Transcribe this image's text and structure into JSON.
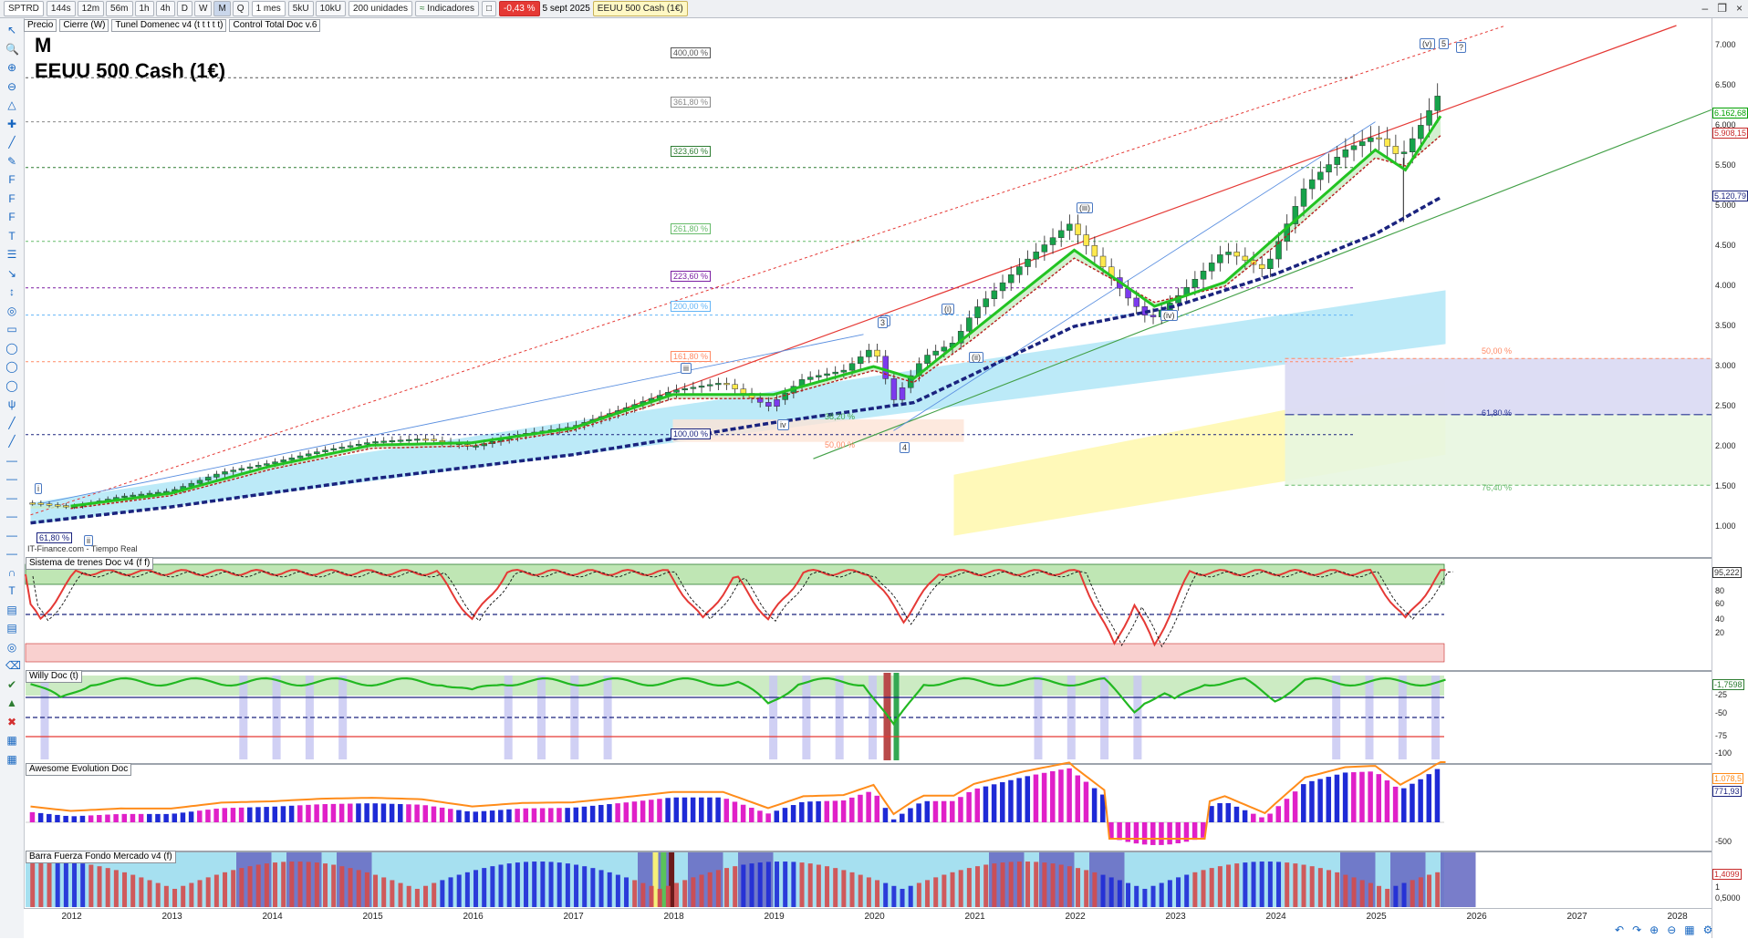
{
  "toolbar": {
    "symbol": "SPTRD",
    "buttons": [
      "144s",
      "12m",
      "56m",
      "1h",
      "4h",
      "D",
      "W",
      "M",
      "Q"
    ],
    "active_button": "M",
    "period": "1 mes",
    "units": [
      "5kU",
      "10kU"
    ],
    "bars": "200 unidades",
    "indicators": "Indicadores",
    "change": "-0,43 %",
    "date": "5 sept 2025",
    "instrument": "EEUU 500 Cash (1€)"
  },
  "legend": {
    "items": [
      "Precio",
      "Cierre (W)",
      "Tunel Domenec v4 (t t t t t)",
      "Control Total Doc v.6"
    ]
  },
  "header": {
    "timeframe": "M",
    "title": "EEUU 500 Cash (1€)",
    "source": "IT-Finance.com - Tiempo Real"
  },
  "fib_labels": [
    {
      "text": "400,00 %",
      "color": "#555555"
    },
    {
      "text": "361,80 %",
      "color": "#888888"
    },
    {
      "text": "323,60 %",
      "color": "#2e7d32"
    },
    {
      "text": "261,80 %",
      "color": "#66bb6a"
    },
    {
      "text": "223,60 %",
      "color": "#7b1fa2"
    },
    {
      "text": "200,00 %",
      "color": "#64b5f6"
    },
    {
      "text": "161,80 %",
      "color": "#ff8a65"
    },
    {
      "text": "100,00 %",
      "color": "#1a237e"
    },
    {
      "text": "61,80 %",
      "color": "#1a237e"
    },
    {
      "text": "38,20 %",
      "color": "#43a047"
    },
    {
      "text": "50,00 %",
      "color": "#ff8a65"
    },
    {
      "text": "50,00 %",
      "color": "#ff8a65"
    },
    {
      "text": "61,80 %",
      "color": "#283593"
    },
    {
      "text": "76,40 %",
      "color": "#66bb6a"
    }
  ],
  "waves": [
    "i",
    "ii",
    "iii",
    "iv",
    "v",
    "(i)",
    "(ii)",
    "(iii)",
    "(iv)",
    "(v)",
    "3",
    "4",
    "5",
    "?"
  ],
  "panels": [
    {
      "title": "Sistema de trenes Doc v4 (f f)",
      "ticks": [
        "80",
        "60",
        "40",
        "20"
      ],
      "value": "95,222"
    },
    {
      "title": "Willy Doc (t)",
      "ticks": [
        "-25",
        "-50",
        "-75",
        "-100"
      ],
      "value": "-1,7598"
    },
    {
      "title": "Awesome Evolution Doc",
      "ticks": [
        "-500"
      ],
      "values": [
        "1.078,5",
        "771,93"
      ]
    },
    {
      "title": "Barra Fuerza Fondo Mercado v4 (f)",
      "ticks": [
        "1",
        "0,5000"
      ],
      "value": "1,4099"
    }
  ],
  "chart_data": {
    "type": "candlestick",
    "title": "EEUU 500 Cash (1€)",
    "timeframe": "M",
    "xlabel": "",
    "ylabel": "",
    "x_ticks": [
      "2012",
      "2013",
      "2014",
      "2015",
      "2016",
      "2017",
      "2018",
      "2019",
      "2020",
      "2021",
      "2022",
      "2023",
      "2024",
      "2025",
      "2026",
      "2027",
      "2028"
    ],
    "y_ticks": [
      "7.000",
      "6.500",
      "6.000",
      "5.500",
      "5.000",
      "4.500",
      "4.000",
      "3.500",
      "3.000",
      "2.500",
      "2.000",
      "1.500",
      "1.000"
    ],
    "ylim": [
      750,
      7250
    ],
    "price_badges": [
      {
        "value": "6.162,68",
        "color": "#00a000"
      },
      {
        "value": "5.908,15",
        "color": "#c62828"
      },
      {
        "value": "5.120,79",
        "color": "#1a237e"
      }
    ],
    "series": [
      {
        "name": "Precio",
        "x": [
          2011.6,
          2012.0,
          2012.5,
          2013.0,
          2013.5,
          2014.0,
          2014.5,
          2015.0,
          2015.5,
          2016.0,
          2016.5,
          2017.0,
          2017.5,
          2018.0,
          2018.5,
          2018.95,
          2019.3,
          2019.7,
          2020.0,
          2020.2,
          2020.5,
          2020.8,
          2021.0,
          2021.5,
          2021.95,
          2022.5,
          2022.75,
          2023.0,
          2023.5,
          2023.9,
          2024.3,
          2024.7,
          2025.0,
          2025.25,
          2025.45,
          2025.67
        ],
        "values": [
          1300,
          1250,
          1380,
          1450,
          1680,
          1800,
          1950,
          2060,
          2100,
          2000,
          2160,
          2250,
          2470,
          2700,
          2800,
          2500,
          2850,
          2950,
          3250,
          2580,
          3120,
          3300,
          3700,
          4300,
          4780,
          3900,
          3580,
          3840,
          4450,
          4200,
          5250,
          5700,
          5880,
          5600,
          6000,
          6480
        ]
      },
      {
        "name": "Tunel rapida",
        "x": [
          2012,
          2013,
          2014,
          2015,
          2016,
          2017,
          2018,
          2019,
          2020,
          2020.4,
          2021,
          2022,
          2022.8,
          2023.5,
          2024,
          2025,
          2025.3,
          2025.67
        ],
        "values": [
          1260,
          1420,
          1760,
          2020,
          2050,
          2230,
          2650,
          2650,
          3000,
          2850,
          3450,
          4450,
          3750,
          4050,
          4600,
          5700,
          5450,
          6160
        ]
      },
      {
        "name": "Tunel lenta",
        "x": [
          2012,
          2013,
          2014,
          2015,
          2016,
          2017,
          2018,
          2019,
          2020,
          2020.4,
          2021,
          2022,
          2022.8,
          2023.5,
          2024,
          2025,
          2025.3,
          2025.67
        ],
        "values": [
          1230,
          1390,
          1720,
          1980,
          2010,
          2200,
          2600,
          2600,
          2950,
          2800,
          3350,
          4350,
          3800,
          4000,
          4500,
          5600,
          5500,
          5900
        ]
      },
      {
        "name": "Tendencia azul",
        "x": [
          2011.6,
          2013,
          2015,
          2017,
          2019,
          2020.4,
          2022,
          2023,
          2024,
          2025,
          2025.67
        ],
        "values": [
          1050,
          1250,
          1600,
          1900,
          2300,
          2550,
          3500,
          3750,
          4150,
          4650,
          5120
        ]
      }
    ]
  }
}
